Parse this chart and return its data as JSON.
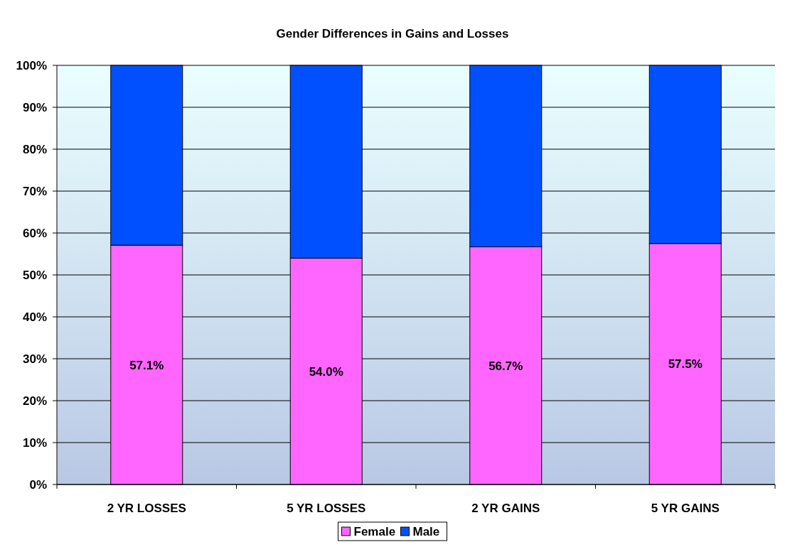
{
  "chart_data": {
    "type": "bar",
    "title": "Gender Differences in Gains and Losses",
    "categories": [
      "2 YR LOSSES",
      "5 YR LOSSES",
      "2 YR GAINS",
      "5 YR GAINS"
    ],
    "stacked": true,
    "series": [
      {
        "name": "Female",
        "color": "#ff66ff",
        "values": [
          57.1,
          54.0,
          56.7,
          57.5
        ],
        "value_labels": [
          "57.1%",
          "54.0%",
          "56.7%",
          "57.5%"
        ]
      },
      {
        "name": "Male",
        "color": "#0050ff",
        "values": [
          42.9,
          46.0,
          43.3,
          42.5
        ]
      }
    ],
    "ylim": [
      0,
      100
    ],
    "yticks": [
      {
        "value": 0,
        "label": "0%"
      },
      {
        "value": 10,
        "label": "10%"
      },
      {
        "value": 20,
        "label": "20%"
      },
      {
        "value": 30,
        "label": "30%"
      },
      {
        "value": 40,
        "label": "40%"
      },
      {
        "value": 50,
        "label": "50%"
      },
      {
        "value": 60,
        "label": "60%"
      },
      {
        "value": 70,
        "label": "70%"
      },
      {
        "value": 80,
        "label": "80%"
      },
      {
        "value": 90,
        "label": "90%"
      },
      {
        "value": 100,
        "label": "100%"
      }
    ],
    "grid": "y",
    "legend": "bottom"
  }
}
